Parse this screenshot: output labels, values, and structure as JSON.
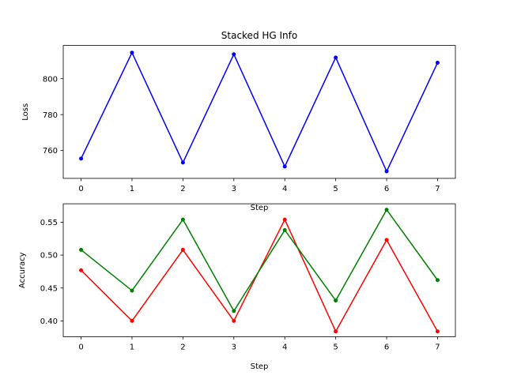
{
  "chart_data": [
    {
      "type": "line",
      "title": "Stacked HG Info",
      "xlabel": "Step",
      "ylabel": "Loss",
      "x": [
        0,
        1,
        2,
        3,
        4,
        5,
        6,
        7
      ],
      "xlim": [
        -0.35,
        7.35
      ],
      "ylim": [
        744.5,
        818.5
      ],
      "xticks": [
        0,
        1,
        2,
        3,
        4,
        5,
        6,
        7
      ],
      "yticks": [
        760,
        780,
        800
      ],
      "grid": false,
      "series": [
        {
          "color": "#0000ff",
          "marker": "dot",
          "values": [
            755.5,
            814.5,
            753.3,
            813.6,
            751.1,
            811.8,
            748.4,
            808.9
          ]
        }
      ]
    },
    {
      "type": "line",
      "title": "",
      "xlabel": "Step",
      "ylabel": "Accuracy",
      "x": [
        0,
        1,
        2,
        3,
        4,
        5,
        6,
        7
      ],
      "xlim": [
        -0.35,
        7.35
      ],
      "ylim": [
        0.376,
        0.578
      ],
      "xticks": [
        0,
        1,
        2,
        3,
        4,
        5,
        6,
        7
      ],
      "yticks": [
        0.4,
        0.45,
        0.5,
        0.55
      ],
      "ytick_format": 2,
      "grid": false,
      "series": [
        {
          "color": "#ff0000",
          "marker": "dot",
          "values": [
            0.477,
            0.4,
            0.508,
            0.4,
            0.554,
            0.384,
            0.523,
            0.384
          ]
        },
        {
          "color": "#008000",
          "marker": "dot",
          "values": [
            0.508,
            0.446,
            0.554,
            0.415,
            0.538,
            0.431,
            0.569,
            0.462
          ]
        }
      ]
    }
  ]
}
